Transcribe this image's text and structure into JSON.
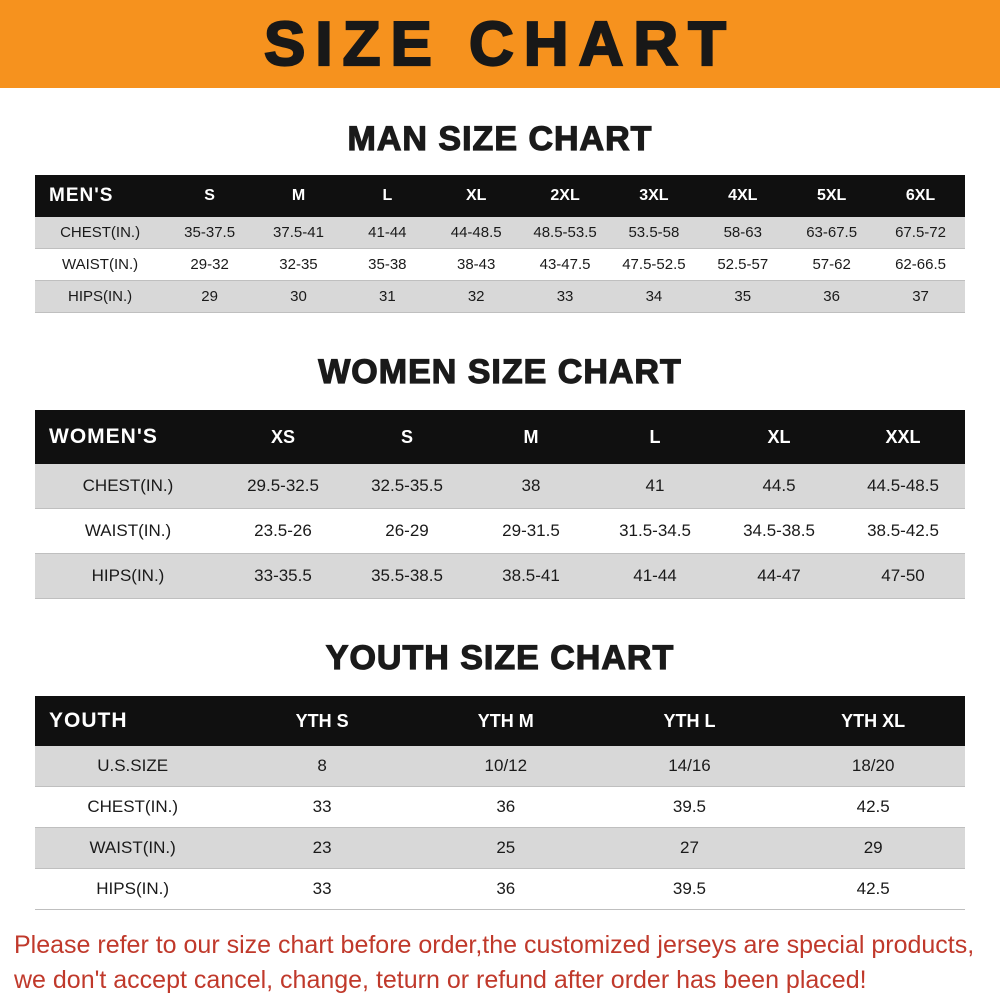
{
  "banner": {
    "title": "SIZE CHART"
  },
  "colors": {
    "banner_bg": "#F6921E",
    "banner_text": "#181818",
    "header_bg": "#101010",
    "header_text": "#FFFFFF",
    "stripe": "#D8D8D8",
    "row_line": "#BFBFBF",
    "text": "#1A1A1A",
    "disclaimer": "#C0392B"
  },
  "sections": [
    {
      "heading": "MAN SIZE CHART",
      "table": {
        "header": [
          "MEN'S",
          "S",
          "M",
          "L",
          "XL",
          "2XL",
          "3XL",
          "4XL",
          "5XL",
          "6XL"
        ],
        "rows": [
          [
            "CHEST(IN.)",
            "35-37.5",
            "37.5-41",
            "41-44",
            "44-48.5",
            "48.5-53.5",
            "53.5-58",
            "58-63",
            "63-67.5",
            "67.5-72"
          ],
          [
            "WAIST(IN.)",
            "29-32",
            "32-35",
            "35-38",
            "38-43",
            "43-47.5",
            "47.5-52.5",
            "52.5-57",
            "57-62",
            "62-66.5"
          ],
          [
            "HIPS(IN.)",
            "29",
            "30",
            "31",
            "32",
            "33",
            "34",
            "35",
            "36",
            "37"
          ]
        ]
      }
    },
    {
      "heading": "WOMEN SIZE CHART",
      "table": {
        "header": [
          "WOMEN'S",
          "XS",
          "S",
          "M",
          "L",
          "XL",
          "XXL"
        ],
        "rows": [
          [
            "CHEST(IN.)",
            "29.5-32.5",
            "32.5-35.5",
            "38",
            "41",
            "44.5",
            "44.5-48.5"
          ],
          [
            "WAIST(IN.)",
            "23.5-26",
            "26-29",
            "29-31.5",
            "31.5-34.5",
            "34.5-38.5",
            "38.5-42.5"
          ],
          [
            "HIPS(IN.)",
            "33-35.5",
            "35.5-38.5",
            "38.5-41",
            "41-44",
            "44-47",
            "47-50"
          ]
        ]
      }
    },
    {
      "heading": "YOUTH SIZE CHART",
      "table": {
        "header": [
          "YOUTH",
          "YTH S",
          "YTH M",
          "YTH L",
          "YTH XL"
        ],
        "rows": [
          [
            "U.S.SIZE",
            "8",
            "10/12",
            "14/16",
            "18/20"
          ],
          [
            "CHEST(IN.)",
            "33",
            "36",
            "39.5",
            "42.5"
          ],
          [
            "WAIST(IN.)",
            "23",
            "25",
            "27",
            "29"
          ],
          [
            "HIPS(IN.)",
            "33",
            "36",
            "39.5",
            "42.5"
          ]
        ]
      }
    }
  ],
  "disclaimer": {
    "line1": "Please refer to our size chart before order,the customized jerseys are special products,",
    "line2": "we don't accept cancel, change, teturn or refund after order has been placed!"
  }
}
